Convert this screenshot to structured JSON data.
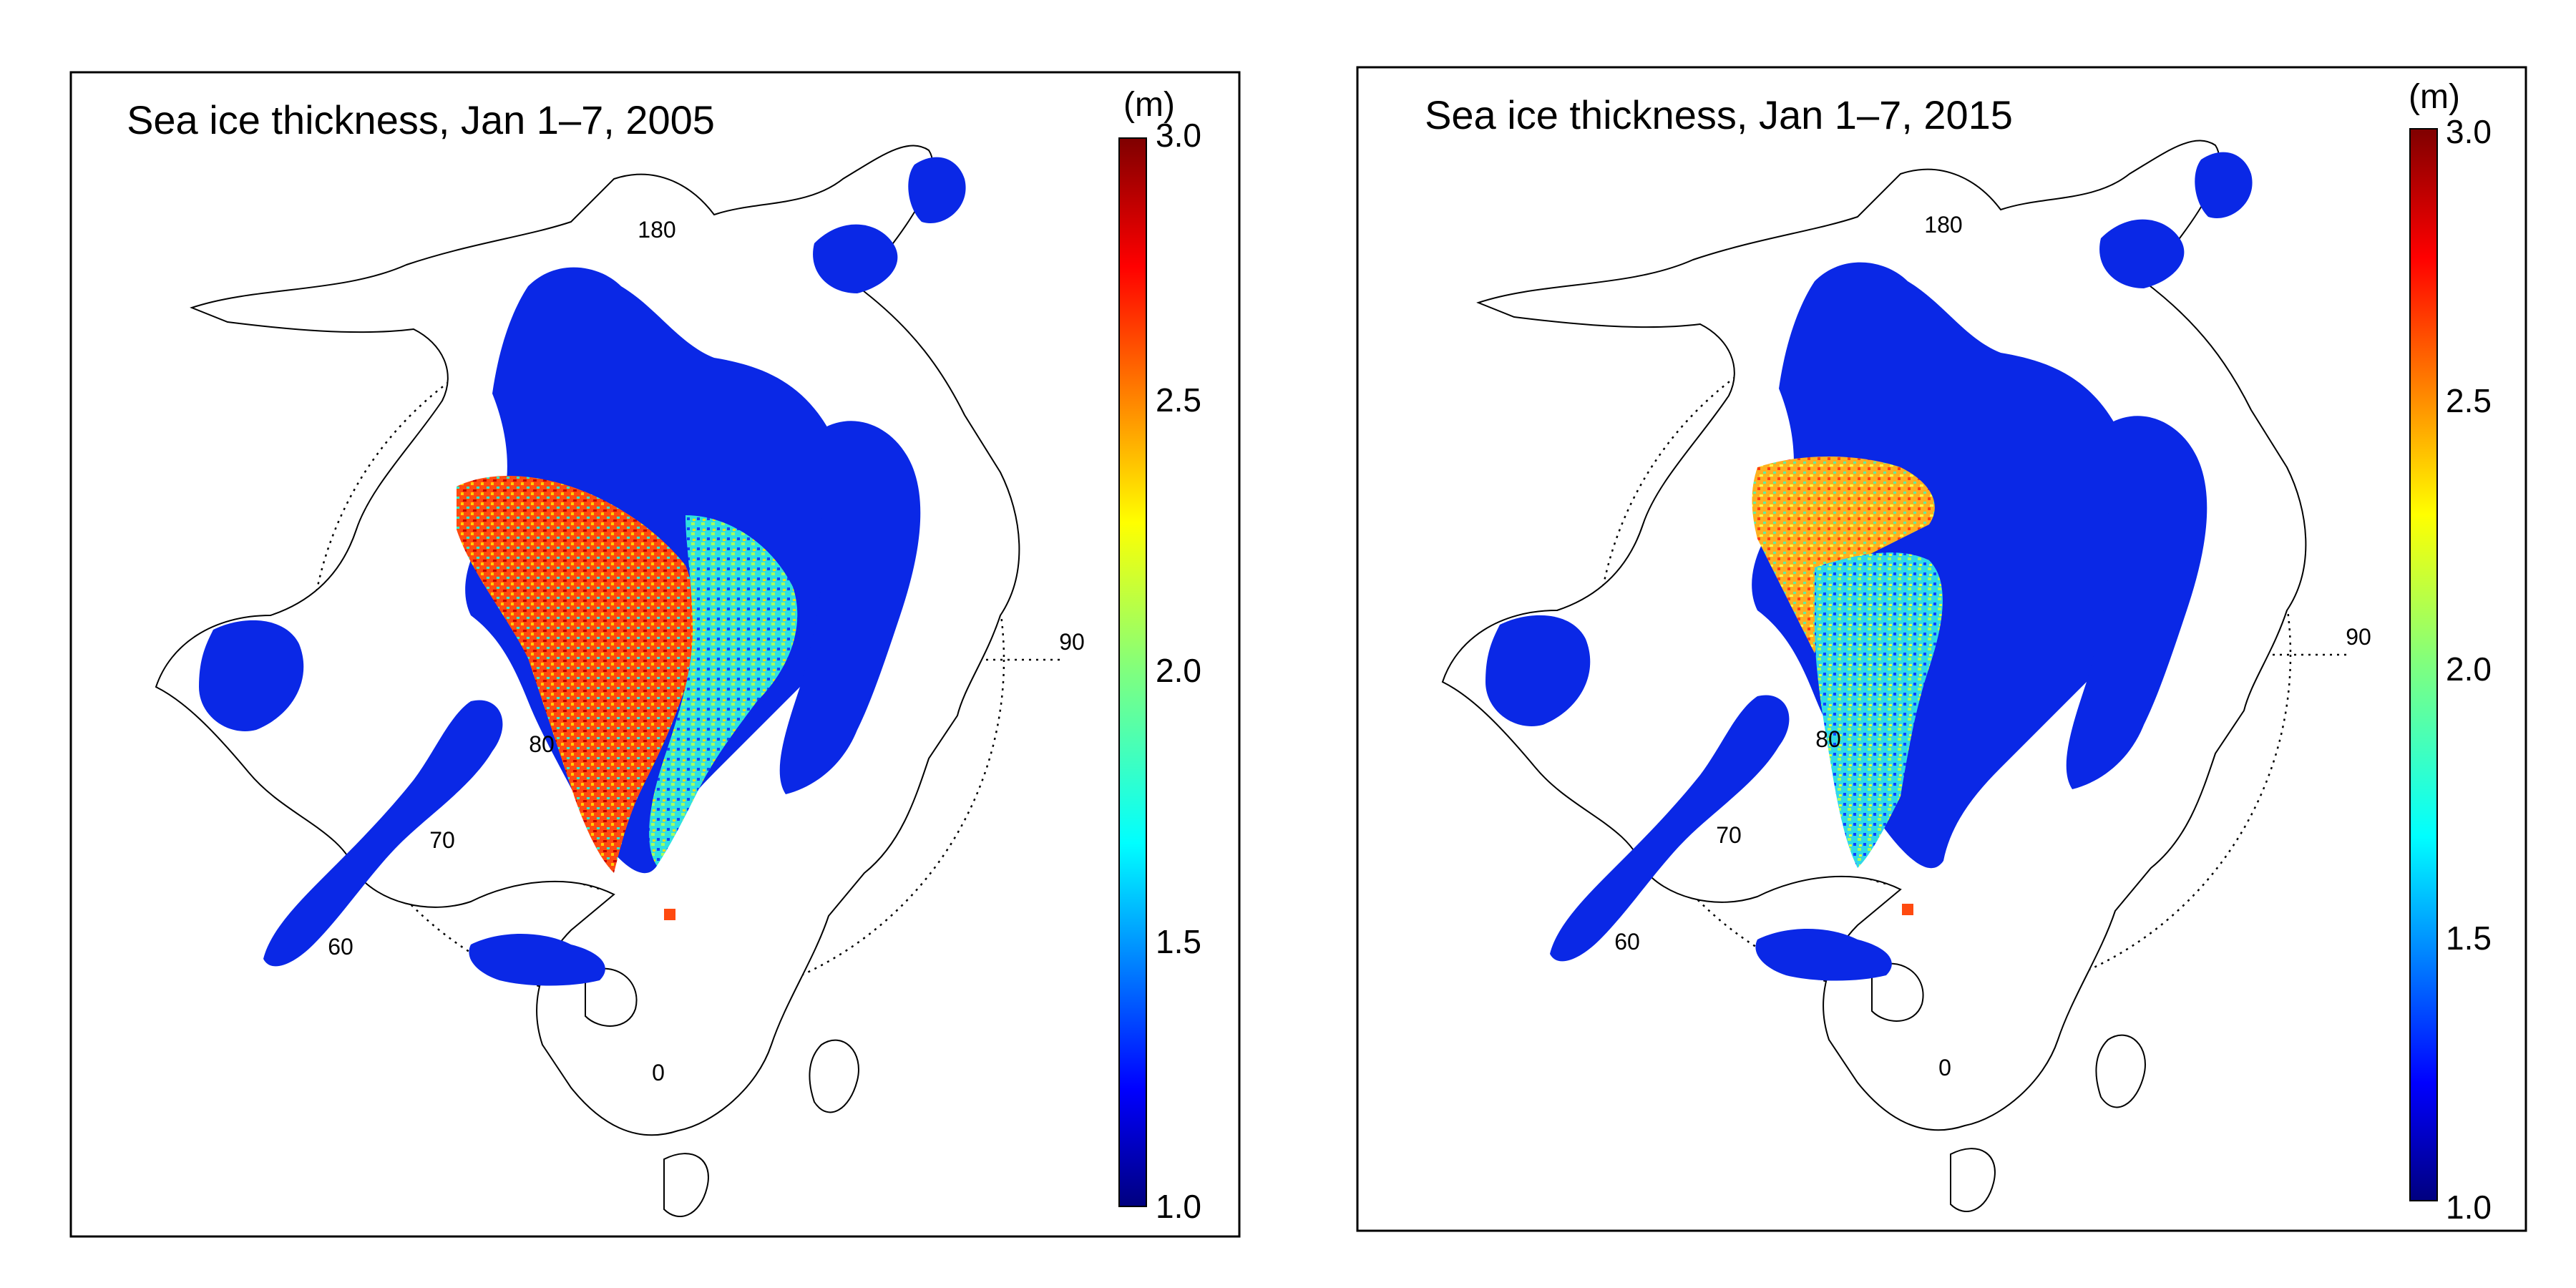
{
  "panels": [
    {
      "title": "Sea ice thickness, Jan 1–7, 2005",
      "year": "2005",
      "unit": "(m)",
      "ticks": [
        "3.0",
        "2.5",
        "2.0",
        "1.5",
        "1.0"
      ],
      "lon_labels": {
        "top": "180",
        "right": "90",
        "bottom": "0"
      },
      "lat_labels": [
        "80",
        "70",
        "60"
      ]
    },
    {
      "title": "Sea ice thickness, Jan 1–7, 2015",
      "year": "2015",
      "unit": "(m)",
      "ticks": [
        "3.0",
        "2.5",
        "2.0",
        "1.5",
        "1.0"
      ],
      "lon_labels": {
        "top": "180",
        "right": "90",
        "bottom": "0"
      },
      "lat_labels": [
        "80",
        "70",
        "60"
      ]
    }
  ],
  "colorbar": {
    "min": 1.0,
    "max": 3.0,
    "colormap": "jet",
    "colors": [
      "#00007f",
      "#0000ff",
      "#007fff",
      "#00ffff",
      "#7fff7f",
      "#ffff00",
      "#ff7f00",
      "#ff0000",
      "#7f0000"
    ]
  }
}
